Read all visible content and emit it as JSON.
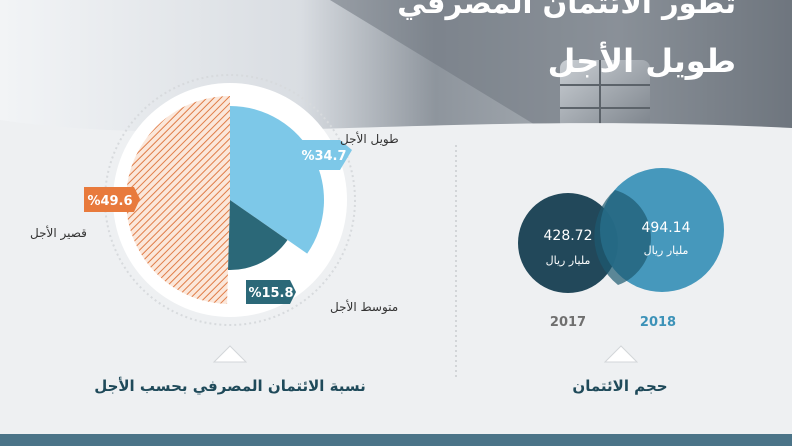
{
  "header": {
    "title_line1": "تطور الائتمان المصرفي",
    "title_line2": "طويل الأجل"
  },
  "credit_split": {
    "panel_title": "نسبة الائتمان المصرفي بحسب الأجل",
    "segments": [
      {
        "label": "طويل الأجل",
        "badge": "%34.7",
        "value": 34.7,
        "color": "#7dc8e8"
      },
      {
        "label": "متوسط الأجل",
        "badge": "%15.8",
        "value": 15.8,
        "color": "#2b6878"
      },
      {
        "label": "قصير الأجل",
        "badge": "%49.6",
        "value": 49.6,
        "color": "#e87a3c"
      }
    ]
  },
  "credit_volume": {
    "panel_title": "حجم الائتمان",
    "years": [
      {
        "year": "2017",
        "value": "428.72",
        "unit": "مليار ريال",
        "color": "#22485a"
      },
      {
        "year": "2018",
        "value": "494.14",
        "unit": "مليار ريال",
        "color": "#3c92b8"
      }
    ]
  },
  "colors": {
    "accent_teal": "#1f4a5a",
    "light_blue": "#7dc8e8",
    "orange": "#e87a3c",
    "year_gray": "#6f6f6f"
  }
}
